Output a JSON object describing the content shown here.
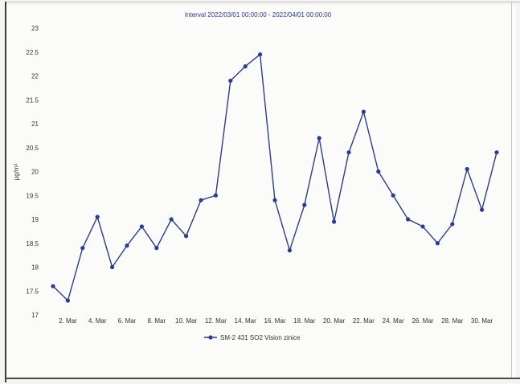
{
  "chart_data": {
    "type": "line",
    "title": "Interval 2022/03/01 00:00:00 - 2022/04/01 00:00:00",
    "xlabel": "",
    "ylabel": "μg/m³",
    "ylim": [
      17,
      23
    ],
    "grid": false,
    "legend_position": "bottom-center",
    "yticks": [
      "17",
      "17.5",
      "18",
      "18.5",
      "19",
      "19.5",
      "20",
      "20.5",
      "21",
      "21.5",
      "22",
      "22.5",
      "23"
    ],
    "xticks": [
      "2. Mar",
      "4. Mar",
      "6. Mar",
      "8. Mar",
      "10. Mar",
      "12. Mar",
      "14. Mar",
      "16. Mar",
      "18. Mar",
      "20. Mar",
      "22. Mar",
      "24. Mar",
      "26. Mar",
      "28. Mar",
      "30. Mar"
    ],
    "x": [
      "2022-03-01",
      "2022-03-02",
      "2022-03-03",
      "2022-03-04",
      "2022-03-05",
      "2022-03-06",
      "2022-03-07",
      "2022-03-08",
      "2022-03-09",
      "2022-03-10",
      "2022-03-11",
      "2022-03-12",
      "2022-03-13",
      "2022-03-14",
      "2022-03-15",
      "2022-03-16",
      "2022-03-17",
      "2022-03-18",
      "2022-03-19",
      "2022-03-20",
      "2022-03-21",
      "2022-03-22",
      "2022-03-23",
      "2022-03-24",
      "2022-03-25",
      "2022-03-26",
      "2022-03-27",
      "2022-03-28",
      "2022-03-29",
      "2022-03-30",
      "2022-03-31"
    ],
    "series": [
      {
        "name": "SM-2 431 SO2 Vision zinice",
        "color": "#2d3d8a",
        "values": [
          17.6,
          17.3,
          18.4,
          19.05,
          18.0,
          18.45,
          18.85,
          18.4,
          19.0,
          18.65,
          19.4,
          19.5,
          21.9,
          22.2,
          22.45,
          19.4,
          18.35,
          19.3,
          20.7,
          18.95,
          20.4,
          21.25,
          20.0,
          19.5,
          19.0,
          18.85,
          18.5,
          18.9,
          20.05,
          19.2,
          20.4
        ]
      }
    ]
  }
}
